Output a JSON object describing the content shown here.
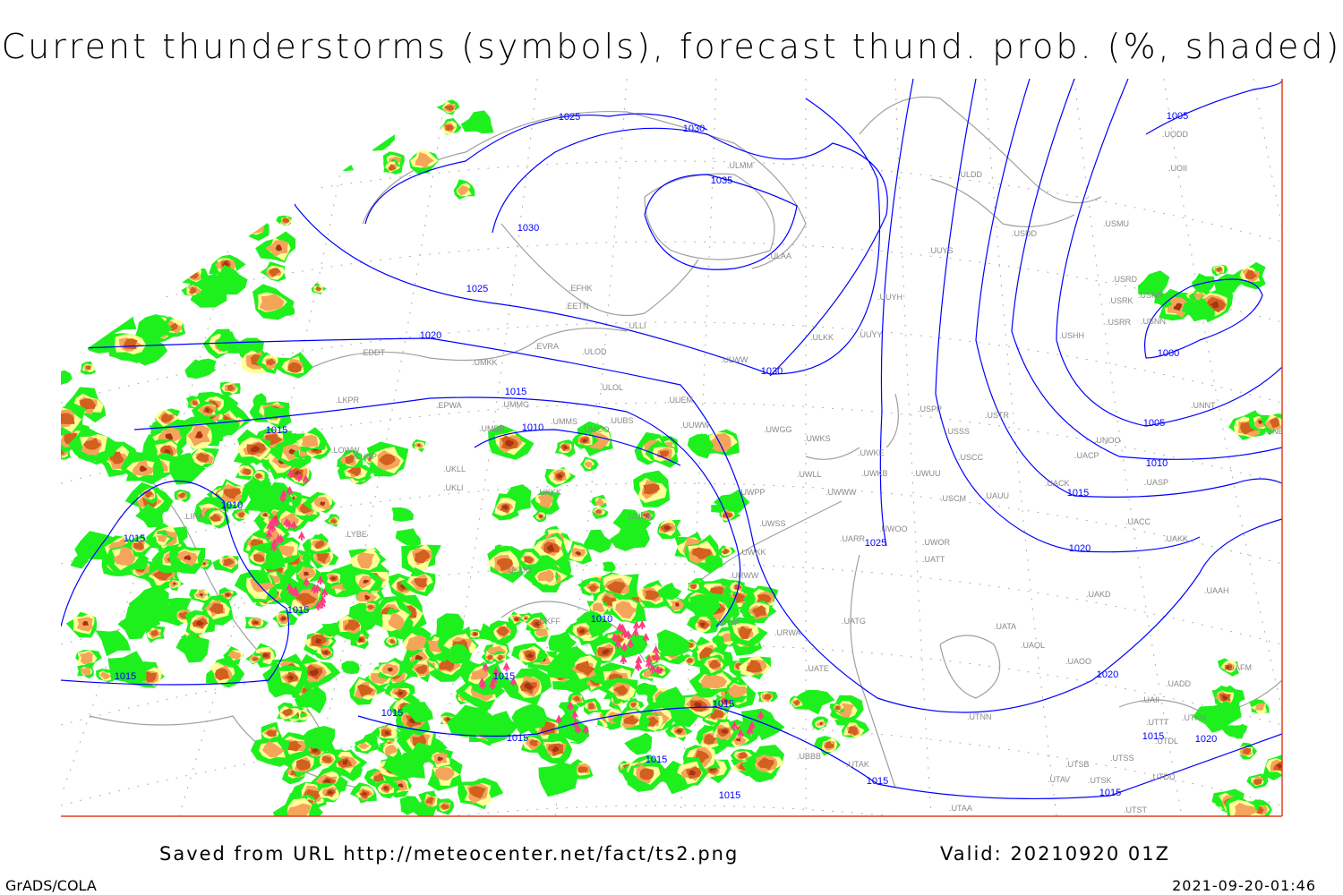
{
  "title": "Current thunderstorms (symbols), forecast thund. prob. (%, shaded)",
  "footer": {
    "saved_from": "Saved from URL http://meteocenter.net/fact/ts2.png",
    "valid": "Valid: 20210920 01Z",
    "software": "GrADS/COLA",
    "timestamp": "2021-09-20-01:46"
  },
  "colors": {
    "isobar": "#0000ff",
    "coastline": "#a0a0a0",
    "prob_low": "#1ef01e",
    "prob_mid": "#ffff9a",
    "prob_high": "#f5a55a",
    "prob_higher": "#d2601e",
    "prob_max": "#a83214",
    "thunderstorm_symbol": "#ff3c82",
    "frame": "#e04020"
  },
  "isobar_labels": [
    "1015",
    "1025",
    "1030",
    "1035",
    "1030",
    "1025",
    "1020",
    "1015",
    "1010",
    "1030",
    "1025",
    "1020",
    "1015",
    "1010",
    "1005",
    "1000",
    "1005",
    "1015",
    "1010",
    "1015",
    "1015",
    "1015",
    "1010",
    "1015",
    "1015",
    "1015",
    "1015",
    "1015",
    "1015",
    "1015",
    "1015",
    "1020",
    "1020",
    "1015"
  ],
  "stations": [
    "ULMM",
    "ULAA",
    "EFHK",
    "EETN",
    "ULLI",
    "EVRA",
    "ULOD",
    "EDDT",
    "UMKK",
    "ULOL",
    "UUEM",
    "EPWA",
    "UMMG",
    "LKPR",
    "UMMS",
    "UMOO",
    "UUBS",
    "UUWW",
    "UMBB",
    "UWGG",
    "UWKS",
    "ULDD",
    "USDD",
    "UUYS",
    "USMU",
    "UOII",
    "UODD",
    "UUYH",
    "ULKK",
    "UUYY",
    "USRD",
    "USRK",
    "USNR",
    "USRR",
    "USNN",
    "USHH",
    "USPP",
    "USTR",
    "USSS",
    "UNOO",
    "UNNT",
    "UNBB",
    "UWKE",
    "UWKB",
    "UWUU",
    "USCC",
    "UASP",
    "UACK",
    "UAUU",
    "USCM",
    "UWLL",
    "UWWW",
    "UWPP",
    "UWSS",
    "UACC",
    "UAKK",
    "UWOO",
    "UWOR",
    "UATT",
    "UARR",
    "UWKK",
    "URWW",
    "UAKD",
    "UAAH",
    "UATG",
    "UATA",
    "URWI",
    "URWA",
    "UAOL",
    "UAOO",
    "UAFM",
    "UADD",
    "UATE",
    "UAII",
    "UTNN",
    "UTTT",
    "UTKN",
    "UTDL",
    "UBBB",
    "UTAK",
    "UTSS",
    "UTSB",
    "UTAV",
    "UTSK",
    "UTDD",
    "UTAA",
    "UTST",
    "LOWW",
    "LHBP",
    "UKLL",
    "UKLI",
    "LIRA",
    "UKKK",
    "UUOB",
    "LYBE",
    "UKOO",
    "UKFF",
    "UACP",
    "ULWW"
  ]
}
